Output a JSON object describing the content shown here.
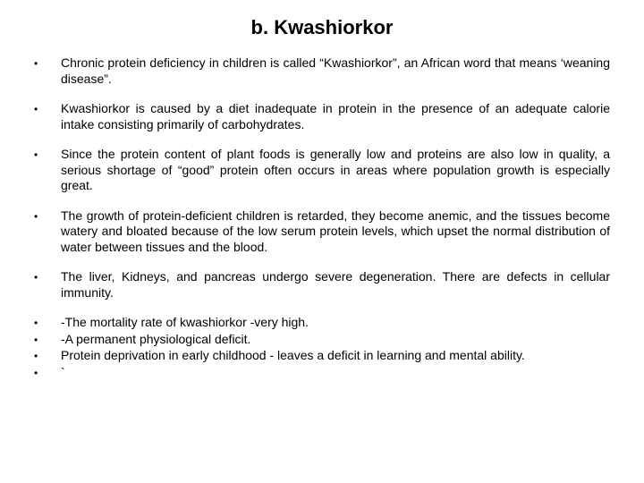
{
  "title": "b. Kwashiorkor",
  "bullets": [
    {
      "text": "Chronic protein deficiency in children is called “Kwashiorkor”, an African word that means ‘weaning disease”.",
      "tight": false
    },
    {
      "text": "Kwashiorkor is caused by a diet inadequate in protein in the presence of an adequate calorie intake consisting primarily of carbohydrates.",
      "tight": false
    },
    {
      "text": "Since the protein content of plant foods is generally low and proteins are also low in quality, a serious shortage of “good” protein often occurs in areas where population growth is especially great.",
      "tight": false
    },
    {
      "text": "The growth of protein-deficient children is retarded, they become anemic, and the tissues become watery and bloated because of the low serum protein levels, which upset the normal distribution of water between tissues and the blood.",
      "tight": false
    },
    {
      "text": "The liver, Kidneys, and pancreas undergo severe degeneration. There are defects in cellular immunity.",
      "tight": false
    },
    {
      "text": "-The mortality rate of kwashiorkor  -very high.",
      "tight": true
    },
    {
      "text": "-A permanent physiological deficit.",
      "tight": true
    },
    {
      "text": " Protein deprivation in early childhood - leaves a deficit in learning and mental ability.",
      "tight": true
    },
    {
      "text": "`",
      "tight": true
    }
  ],
  "style": {
    "background_color": "#ffffff",
    "text_color": "#000000",
    "title_fontsize": 22,
    "body_fontsize": 14,
    "bullet_char": "•",
    "font_family": "Arial"
  }
}
